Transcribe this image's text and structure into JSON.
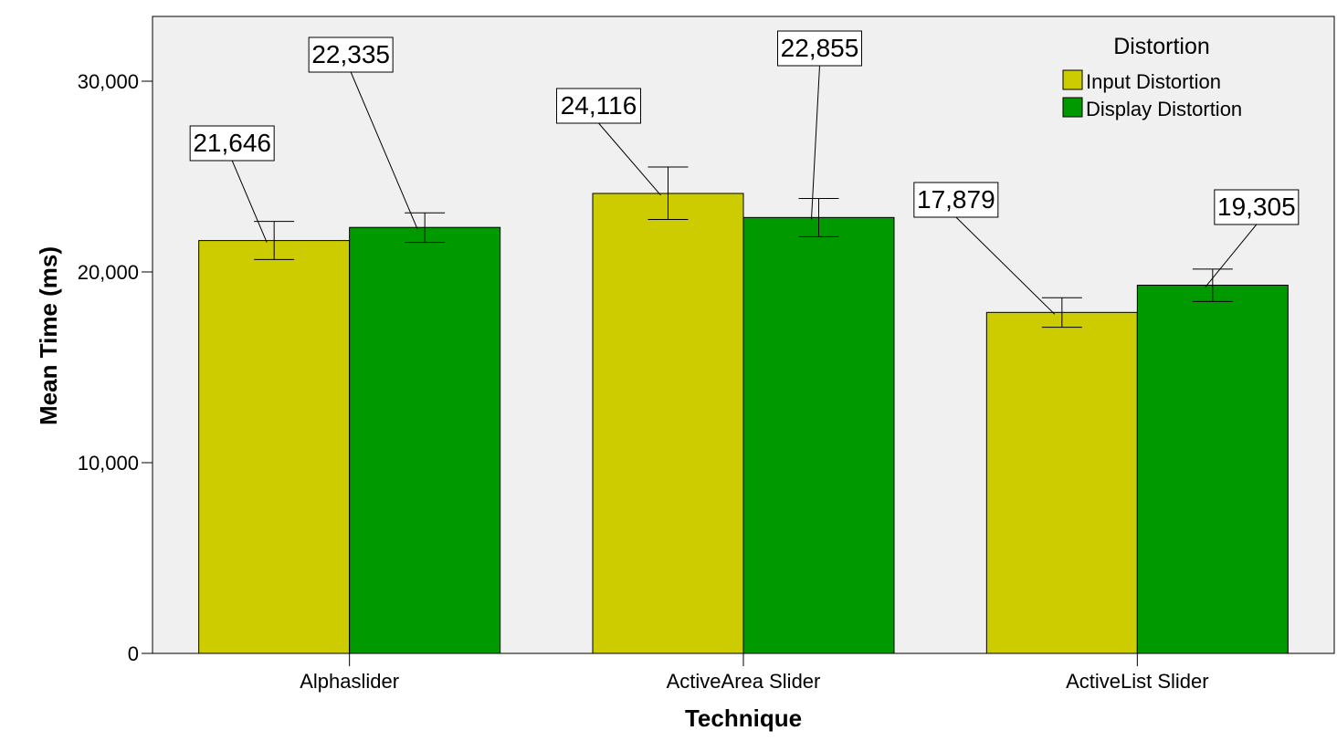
{
  "chart_data": {
    "type": "bar",
    "categories": [
      "Alphaslider",
      "ActiveArea Slider",
      "ActiveList Slider"
    ],
    "xlabel": "Technique",
    "ylabel": "Mean Time (ms)",
    "ylim": [
      0,
      33000
    ],
    "yticks": [
      0,
      10000,
      20000,
      30000
    ],
    "ytick_labels": [
      "0",
      "10,000",
      "20,000",
      "30,000"
    ],
    "legend": {
      "title": "Distortion",
      "placement": "top-right"
    },
    "series": [
      {
        "name": "Input Distortion",
        "color": "#cccc00",
        "values": [
          21646,
          24116,
          17879
        ],
        "value_labels": [
          "21,646",
          "24,116",
          "17,879"
        ],
        "error_low": [
          20650,
          22750,
          17100
        ],
        "error_high": [
          22650,
          25500,
          18650
        ]
      },
      {
        "name": "Display Distortion",
        "color": "#009900",
        "values": [
          22335,
          22855,
          19305
        ],
        "value_labels": [
          "22,335",
          "22,855",
          "19,305"
        ],
        "error_low": [
          21550,
          21850,
          18450
        ],
        "error_high": [
          23100,
          23850,
          20150
        ]
      }
    ],
    "plot_background": "#f0f0f0",
    "grid": false
  }
}
